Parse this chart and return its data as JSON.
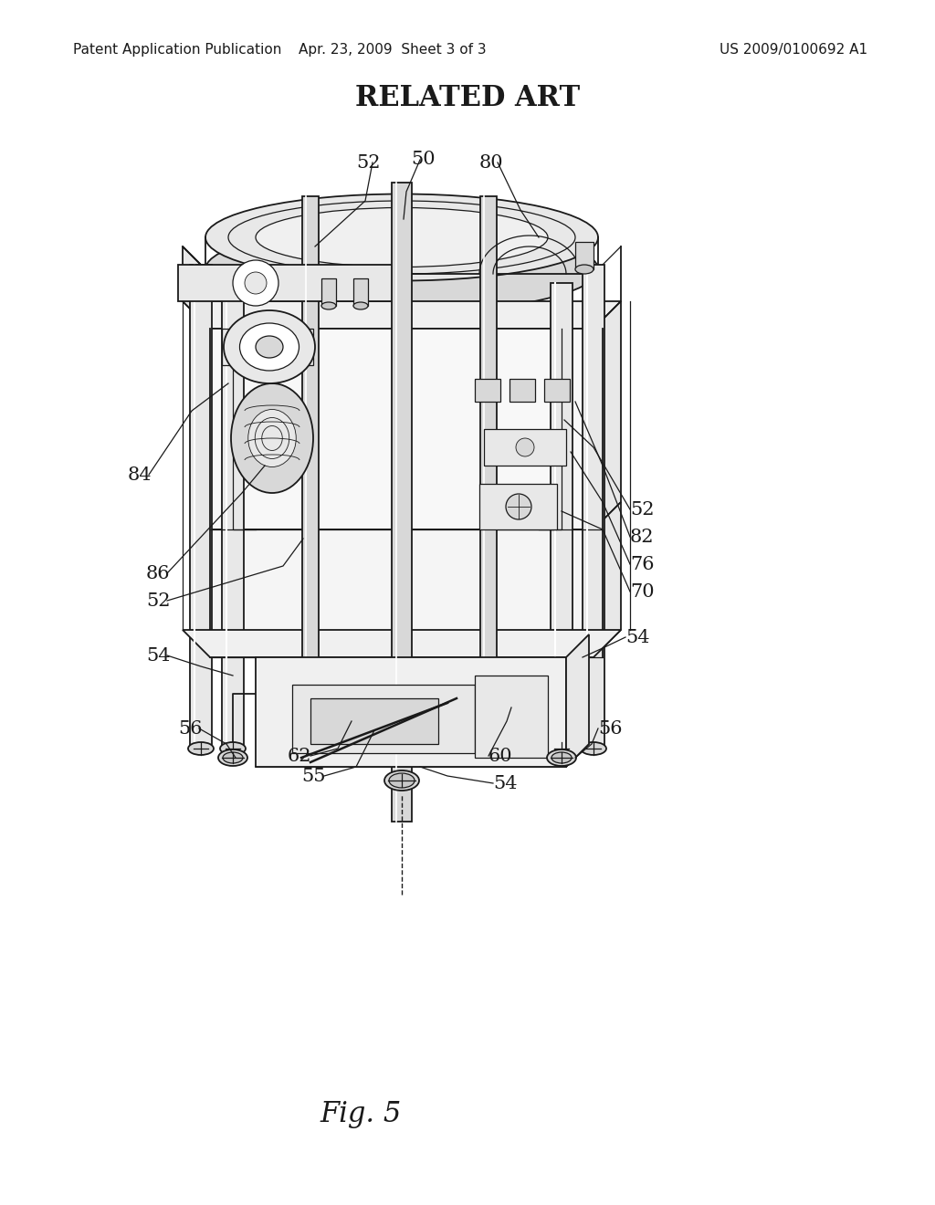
{
  "header_left": "Patent Application Publication",
  "header_mid": "Apr. 23, 2009  Sheet 3 of 3",
  "header_right": "US 2009/0100692 A1",
  "title": "RELATED ART",
  "fig_label": "Fig. 5",
  "bg_color": "#ffffff",
  "title_fontsize": 22,
  "header_fontsize": 11,
  "label_fontsize": 15,
  "fig_label_fontsize": 22
}
